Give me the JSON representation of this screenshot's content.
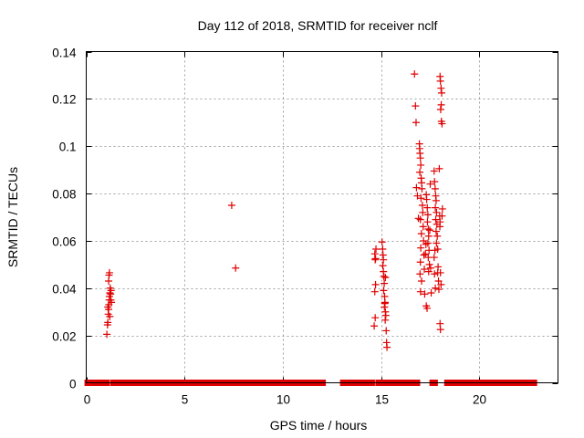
{
  "chart_data": {
    "type": "scatter",
    "title": "Day 112 of 2018, SRMTID for receiver nclf",
    "xlabel": "GPS time / hours",
    "ylabel": "SRMTID / TECUs",
    "xlim": [
      0,
      24
    ],
    "ylim": [
      0,
      0.14
    ],
    "grid": true,
    "xticks": [
      0,
      5,
      10,
      15,
      20
    ],
    "xtick_labels": [
      "0",
      "5",
      "10",
      "15",
      "20"
    ],
    "yticks": [
      0,
      0.02,
      0.04,
      0.06,
      0.08,
      0.1,
      0.12,
      0.14
    ],
    "ytick_labels": [
      "0",
      "0.02",
      "0.04",
      "0.06",
      "0.08",
      "0.1",
      "0.12",
      "0.14"
    ],
    "marker": "+",
    "color": "#e00000",
    "series": [
      {
        "name": "SRMTID",
        "points": [
          [
            1.05,
            0.0205
          ],
          [
            1.08,
            0.0245
          ],
          [
            1.1,
            0.0255
          ],
          [
            1.12,
            0.029
          ],
          [
            1.14,
            0.031
          ],
          [
            1.15,
            0.033
          ],
          [
            1.17,
            0.035
          ],
          [
            1.18,
            0.0365
          ],
          [
            1.2,
            0.038
          ],
          [
            1.22,
            0.04
          ],
          [
            1.14,
            0.043
          ],
          [
            1.16,
            0.0455
          ],
          [
            1.18,
            0.0465
          ],
          [
            1.25,
            0.035
          ],
          [
            1.28,
            0.034
          ],
          [
            1.1,
            0.032
          ],
          [
            1.24,
            0.0375
          ],
          [
            1.2,
            0.028
          ],
          [
            1.26,
            0.039
          ],
          [
            7.4,
            0.075
          ],
          [
            7.6,
            0.0485
          ],
          [
            14.65,
            0.024
          ],
          [
            14.7,
            0.0275
          ],
          [
            14.68,
            0.0385
          ],
          [
            14.72,
            0.0415
          ],
          [
            14.7,
            0.052
          ],
          [
            14.72,
            0.0525
          ],
          [
            14.68,
            0.0545
          ],
          [
            14.74,
            0.0565
          ],
          [
            15.05,
            0.0595
          ],
          [
            15.08,
            0.0565
          ],
          [
            15.1,
            0.054
          ],
          [
            15.12,
            0.052
          ],
          [
            15.09,
            0.0495
          ],
          [
            15.12,
            0.047
          ],
          [
            15.14,
            0.045
          ],
          [
            15.16,
            0.042
          ],
          [
            15.13,
            0.039
          ],
          [
            15.18,
            0.0365
          ],
          [
            15.2,
            0.034
          ],
          [
            15.17,
            0.032
          ],
          [
            15.22,
            0.03
          ],
          [
            15.24,
            0.0285
          ],
          [
            15.21,
            0.0265
          ],
          [
            15.26,
            0.022
          ],
          [
            15.28,
            0.017
          ],
          [
            15.3,
            0.015
          ],
          [
            15.22,
            0.0445
          ],
          [
            15.19,
            0.0335
          ],
          [
            16.7,
            0.1305
          ],
          [
            16.75,
            0.117
          ],
          [
            16.78,
            0.11
          ],
          [
            16.8,
            0.0825
          ],
          [
            16.85,
            0.079
          ],
          [
            16.9,
            0.0695
          ],
          [
            16.95,
            0.101
          ],
          [
            16.96,
            0.099
          ],
          [
            16.98,
            0.097
          ],
          [
            17.0,
            0.095
          ],
          [
            17.02,
            0.092
          ],
          [
            16.97,
            0.089
          ],
          [
            17.04,
            0.0865
          ],
          [
            17.06,
            0.0845
          ],
          [
            17.08,
            0.082
          ],
          [
            17.03,
            0.078
          ],
          [
            17.1,
            0.075
          ],
          [
            17.12,
            0.072
          ],
          [
            17.0,
            0.069
          ],
          [
            17.14,
            0.066
          ],
          [
            17.05,
            0.063
          ],
          [
            17.16,
            0.06
          ],
          [
            17.02,
            0.057
          ],
          [
            17.18,
            0.054
          ],
          [
            17.0,
            0.051
          ],
          [
            17.2,
            0.048
          ],
          [
            16.98,
            0.046
          ],
          [
            17.06,
            0.043
          ],
          [
            17.01,
            0.0385
          ],
          [
            17.22,
            0.0375
          ],
          [
            17.3,
            0.0795
          ],
          [
            17.32,
            0.0775
          ],
          [
            17.35,
            0.074
          ],
          [
            17.38,
            0.071
          ],
          [
            17.36,
            0.068
          ],
          [
            17.4,
            0.065
          ],
          [
            17.42,
            0.062
          ],
          [
            17.38,
            0.059
          ],
          [
            17.44,
            0.056
          ],
          [
            17.4,
            0.053
          ],
          [
            17.46,
            0.05
          ],
          [
            17.42,
            0.047
          ],
          [
            17.3,
            0.0325
          ],
          [
            17.34,
            0.0315
          ],
          [
            17.5,
            0.084
          ],
          [
            17.48,
            0.0645
          ],
          [
            17.28,
            0.0585
          ],
          [
            17.26,
            0.0545
          ],
          [
            17.52,
            0.0485
          ],
          [
            17.55,
            0.038
          ],
          [
            17.7,
            0.0895
          ],
          [
            17.72,
            0.085
          ],
          [
            17.75,
            0.082
          ],
          [
            17.78,
            0.079
          ],
          [
            17.8,
            0.077
          ],
          [
            17.76,
            0.074
          ],
          [
            17.82,
            0.072
          ],
          [
            17.78,
            0.069
          ],
          [
            17.84,
            0.067
          ],
          [
            17.8,
            0.064
          ],
          [
            17.86,
            0.062
          ],
          [
            17.82,
            0.059
          ],
          [
            17.74,
            0.056
          ],
          [
            17.88,
            0.0565
          ],
          [
            17.7,
            0.053
          ],
          [
            17.9,
            0.049
          ],
          [
            17.72,
            0.046
          ],
          [
            17.92,
            0.043
          ],
          [
            17.76,
            0.04
          ],
          [
            17.94,
            0.0395
          ],
          [
            17.96,
            0.0905
          ],
          [
            17.98,
            0.0705
          ],
          [
            18.0,
            0.068
          ],
          [
            17.99,
            0.066
          ],
          [
            17.88,
            0.0465
          ],
          [
            18.0,
            0.1295
          ],
          [
            18.02,
            0.1275
          ],
          [
            18.05,
            0.1245
          ],
          [
            18.08,
            0.1225
          ],
          [
            18.06,
            0.1175
          ],
          [
            18.03,
            0.1155
          ],
          [
            18.07,
            0.1105
          ],
          [
            18.1,
            0.1095
          ],
          [
            18.02,
            0.0465
          ],
          [
            18.05,
            0.0415
          ],
          [
            18.0,
            0.025
          ],
          [
            18.02,
            0.0225
          ],
          [
            18.12,
            0.0735
          ],
          [
            18.1,
            0.0705
          ]
        ]
      },
      {
        "name": "zero baseline",
        "segments": [
          [
            0.05,
            1.05
          ],
          [
            1.35,
            12.05
          ],
          [
            13.05,
            14.55
          ],
          [
            14.85,
            15.15
          ],
          [
            15.35,
            16.85
          ],
          [
            17.6,
            17.75
          ],
          [
            18.35,
            22.8
          ]
        ],
        "value": 0
      }
    ]
  }
}
